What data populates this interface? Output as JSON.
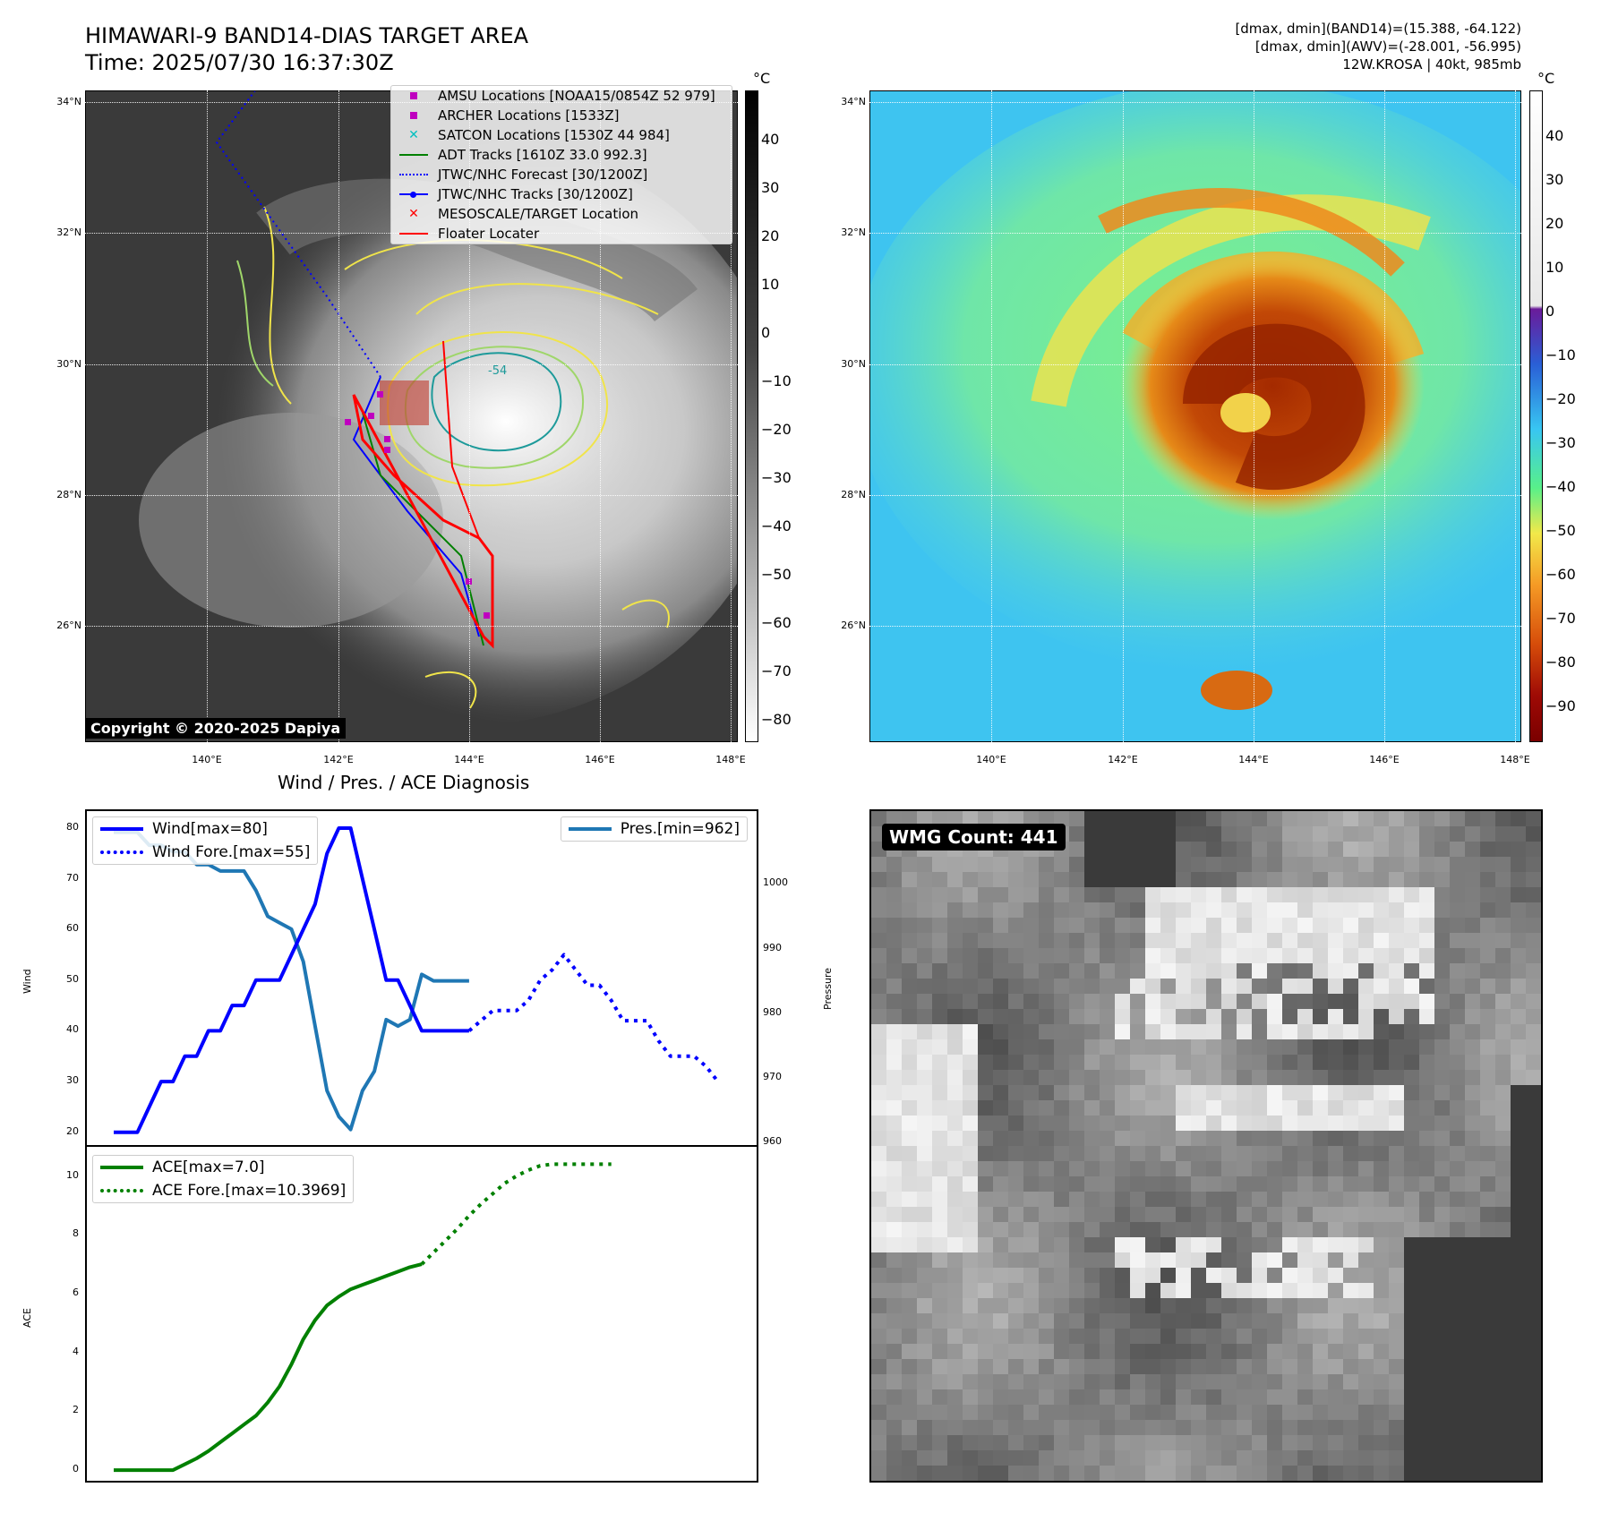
{
  "header": {
    "title_line1": "HIMAWARI-9 BAND14-DIAS TARGET AREA",
    "title_line2": "Time: 2025/07/30 16:37:30Z",
    "info_line1": "[dmax, dmin](BAND14)=(15.388, -64.122)",
    "info_line2": "[dmax, dmin](AWV)=(-28.001, -56.995)",
    "info_line3": "12W.KROSA | 40kt, 985mb"
  },
  "map_axes": {
    "lat_labels": [
      "34°N",
      "32°N",
      "30°N",
      "28°N",
      "26°N"
    ],
    "lon_labels": [
      "140°E",
      "142°E",
      "144°E",
      "146°E",
      "148°E"
    ],
    "contour_label": "-54"
  },
  "ir_panel": {
    "copyright": "Copyright © 2020-2025 Dapiya",
    "colorbar_unit": "°C",
    "colorbar_ticks": [
      "40",
      "30",
      "20",
      "10",
      "0",
      "−10",
      "−20",
      "−30",
      "−40",
      "−50",
      "−60",
      "−70",
      "−80"
    ],
    "legend": [
      {
        "label": "AMSU Locations [NOAA15/0854Z 52 979]",
        "color": "#bf00bf",
        "icon": "square-marker"
      },
      {
        "label": "ARCHER Locations [1533Z]",
        "color": "#bf00bf",
        "icon": "square-marker"
      },
      {
        "label": "SATCON Locations [1530Z 44 984]",
        "color": "#00bfbf",
        "icon": "x-marker"
      },
      {
        "label": "ADT Tracks [1610Z 33.0 992.3]",
        "color": "#008000",
        "icon": "solid-line"
      },
      {
        "label": "JTWC/NHC Forecast [30/1200Z]",
        "color": "#0000ff",
        "icon": "dotted-line"
      },
      {
        "label": "JTWC/NHC Tracks [30/1200Z]",
        "color": "#0000ff",
        "icon": "line-with-dot"
      },
      {
        "label": "MESOSCALE/TARGET Location",
        "color": "#ff0000",
        "icon": "x-marker"
      },
      {
        "label": "Floater Locater",
        "color": "#ff0000",
        "icon": "solid-line"
      }
    ]
  },
  "wv_panel": {
    "colorbar_unit": "°C",
    "colorbar_ticks": [
      "40",
      "30",
      "20",
      "10",
      "0",
      "−10",
      "−20",
      "−30",
      "−40",
      "−50",
      "−60",
      "−70",
      "−80",
      "−90"
    ]
  },
  "wmg_panel": {
    "badge": "WMG Count: 441"
  },
  "colors": {
    "wind": "#0000ff",
    "pressure": "#1f77b4",
    "ace": "#008000"
  },
  "chart_data": [
    {
      "type": "line",
      "title": "Wind / Pres. / ACE Diagnosis",
      "ylabel": "Wind",
      "y2label": "Pressure",
      "ylim": [
        18,
        83
      ],
      "y2lim": [
        960,
        1011
      ],
      "yticks": [
        20,
        30,
        40,
        50,
        60,
        70,
        80
      ],
      "y2ticks": [
        960,
        970,
        980,
        990,
        1000
      ],
      "series": [
        {
          "name": "Wind[max=80]",
          "axis": "left",
          "style": "solid",
          "values": [
            20,
            20,
            20,
            25,
            30,
            30,
            35,
            35,
            40,
            40,
            45,
            45,
            50,
            50,
            50,
            55,
            60,
            65,
            75,
            80,
            80,
            70,
            60,
            50,
            50,
            45,
            40,
            40,
            40,
            40,
            40
          ]
        },
        {
          "name": "Wind Fore.[max=55]",
          "axis": "left",
          "style": "dotted",
          "x_start": 30,
          "values": [
            40,
            42,
            44,
            44,
            44,
            46,
            50,
            52,
            55,
            52,
            49,
            49,
            46,
            42,
            42,
            42,
            38,
            35,
            35,
            35,
            33,
            30
          ]
        },
        {
          "name": "Pres.[min=962]",
          "axis": "right",
          "style": "solid",
          "values": [
            1008,
            1008,
            1008,
            1006,
            1006,
            1005,
            1005,
            1003,
            1003,
            1002,
            1002,
            1002,
            999,
            995,
            994,
            993,
            988,
            978,
            968,
            964,
            962,
            968,
            971,
            979,
            978,
            979,
            986,
            985,
            985,
            985,
            985
          ]
        }
      ]
    },
    {
      "type": "line",
      "ylabel": "ACE",
      "ylim": [
        -0.3,
        10.9
      ],
      "yticks": [
        0,
        2,
        4,
        6,
        8,
        10
      ],
      "series": [
        {
          "name": "ACE[max=7.0]",
          "style": "solid",
          "values": [
            0,
            0,
            0,
            0,
            0,
            0,
            0.2,
            0.4,
            0.65,
            0.95,
            1.25,
            1.55,
            1.85,
            2.3,
            2.85,
            3.6,
            4.45,
            5.1,
            5.6,
            5.9,
            6.15,
            6.3,
            6.45,
            6.6,
            6.75,
            6.9,
            7.0
          ]
        },
        {
          "name": "ACE Fore.[max=10.3969]",
          "style": "dotted",
          "x_start": 26,
          "values": [
            7.0,
            7.4,
            7.8,
            8.2,
            8.65,
            9.05,
            9.4,
            9.75,
            10.0,
            10.2,
            10.35,
            10.4,
            10.4,
            10.4,
            10.4,
            10.4,
            10.4
          ]
        }
      ]
    }
  ]
}
